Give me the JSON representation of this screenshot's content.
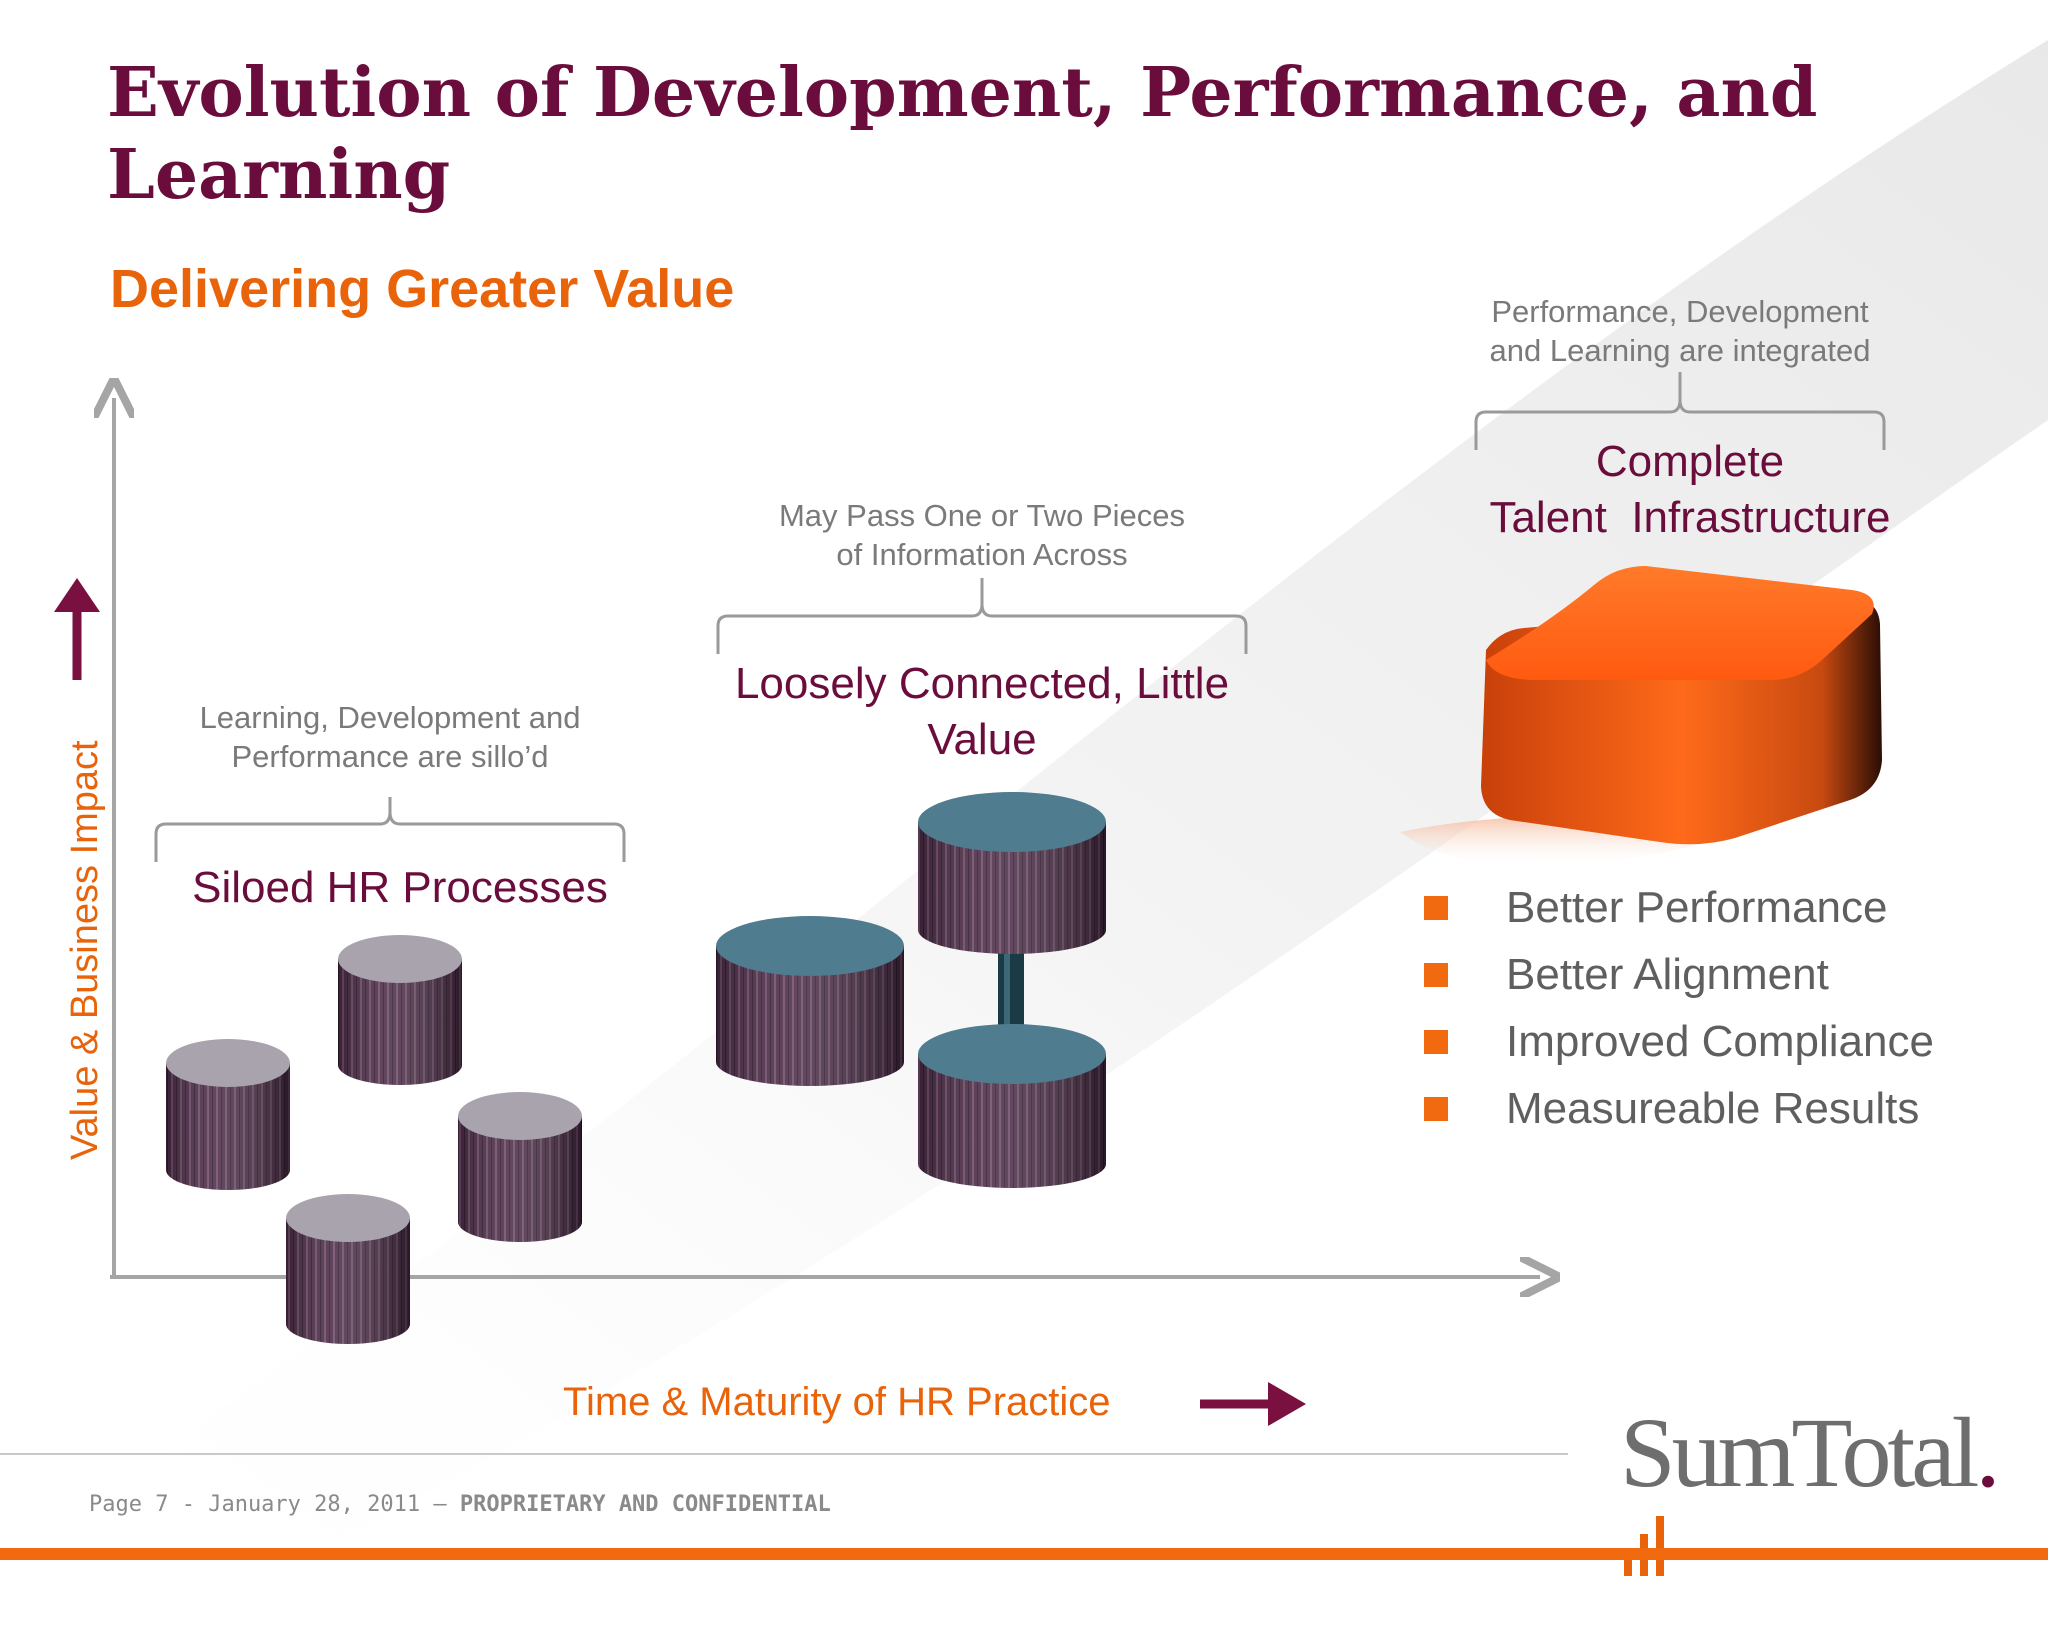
{
  "slide": {
    "title": "Evolution of Development, Performance, and Learning",
    "subtitle": "Delivering Greater Value"
  },
  "axes": {
    "y_label": "Value & Business Impact",
    "x_label": "Time & Maturity of HR Practice"
  },
  "stages": [
    {
      "note_line1": "Learning, Development and",
      "note_line2": "Performance are sillo’d",
      "title": "Siloed HR Processes"
    },
    {
      "note_line1": "May Pass One or Two Pieces",
      "note_line2": "of Information Across",
      "title_line1": "Loosely Connected, Little",
      "title_line2": "Value"
    },
    {
      "note_line1": "Performance, Development",
      "note_line2": "and Learning are integrated",
      "title_line1": "Complete",
      "title_line2": "Talent  Infrastructure"
    }
  ],
  "benefits": [
    "Better Performance",
    "Better Alignment",
    "Improved Compliance",
    "Measureable Results"
  ],
  "footer": {
    "page_info": "Page 7 - January 28, 2011 –",
    "confidential": "PROPRIETARY AND CONFIDENTIAL"
  },
  "logo": {
    "text": "SumTotal",
    "dot": "."
  },
  "colors": {
    "title": "#6b0d3c",
    "accent": "#e8630a",
    "note": "#7a7a7a",
    "bullet": "#f26a10"
  }
}
